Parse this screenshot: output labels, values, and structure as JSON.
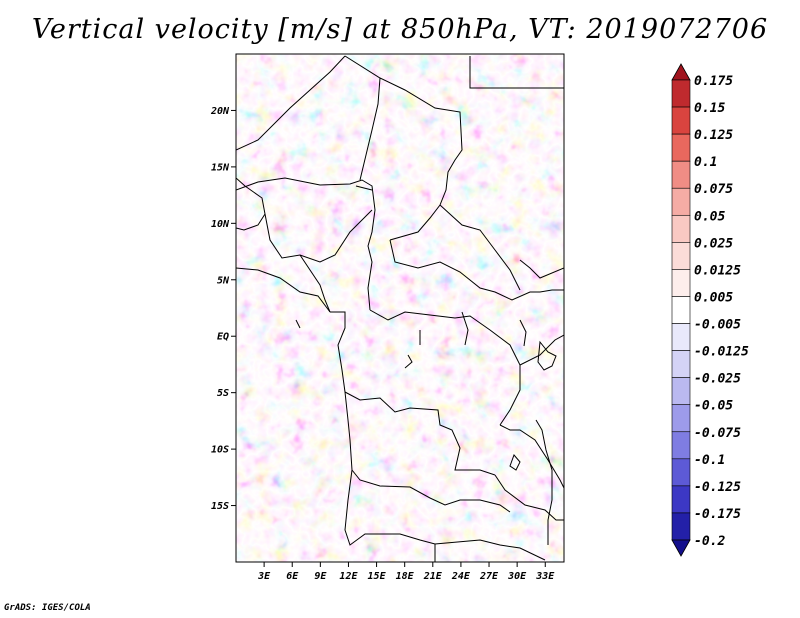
{
  "title": "Vertical velocity [m/s] at 850hPa, VT: 2019072706",
  "credit": "GrADS: IGES/COLA",
  "lat_ticks": [
    "20N",
    "15N",
    "10N",
    "5N",
    "EQ",
    "5S",
    "10S",
    "15S"
  ],
  "lat_values": [
    20,
    15,
    10,
    5,
    0,
    -5,
    -10,
    -15
  ],
  "lon_ticks": [
    "3E",
    "6E",
    "9E",
    "12E",
    "15E",
    "18E",
    "21E",
    "24E",
    "27E",
    "30E",
    "33E"
  ],
  "lon_values": [
    3,
    6,
    9,
    12,
    15,
    18,
    21,
    24,
    27,
    30,
    33
  ],
  "extent": {
    "lon_min": 0,
    "lon_max": 35,
    "lat_min": -20,
    "lat_max": 25
  },
  "colorbar": {
    "labels": [
      "0.175",
      "0.15",
      "0.125",
      "0.1",
      "0.075",
      "0.05",
      "0.025",
      "0.0125",
      "0.005",
      "-0.005",
      "-0.0125",
      "-0.025",
      "-0.05",
      "-0.075",
      "-0.1",
      "-0.125",
      "-0.175",
      "-0.2"
    ],
    "colors": [
      "#a0141e",
      "#bf2a2e",
      "#d9443f",
      "#e9685e",
      "#f08d85",
      "#f5aca5",
      "#f9c9c3",
      "#fbdcd8",
      "#fdeeec",
      "#ffffff",
      "#e9e9fb",
      "#d4d3f6",
      "#bab9f0",
      "#9d9bea",
      "#7f7de2",
      "#5d5ad6",
      "#3c38c4",
      "#2320a8",
      "#130f8c"
    ]
  }
}
